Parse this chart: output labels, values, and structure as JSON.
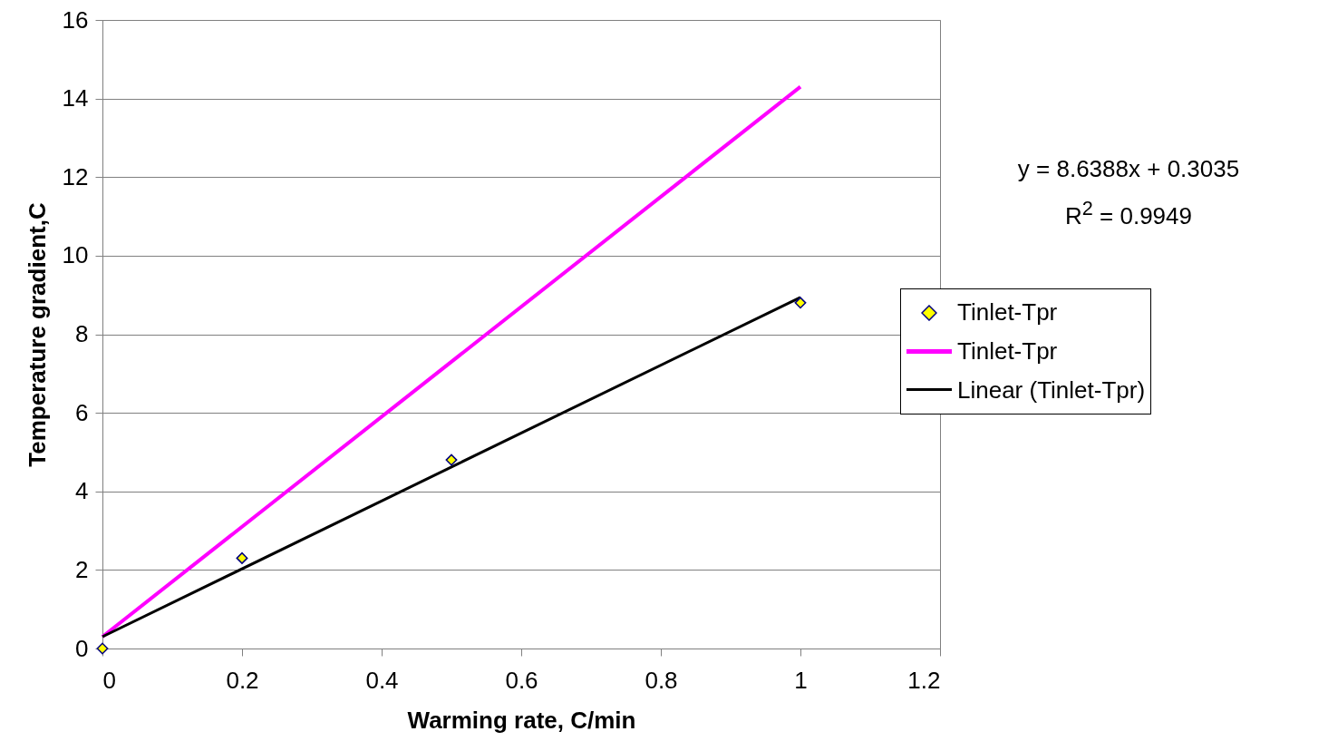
{
  "chart_data": {
    "type": "scatter",
    "xlabel": "Warming rate, C/min",
    "ylabel": "Temperature gradient,C",
    "xlim": [
      0,
      1.2
    ],
    "xticks": [
      0,
      0.2,
      0.4,
      0.6,
      0.8,
      1,
      1.2
    ],
    "ylim": [
      0,
      16
    ],
    "yticks": [
      0,
      2,
      4,
      6,
      8,
      10,
      12,
      14,
      16
    ],
    "grid": "y",
    "legend": "right",
    "annotations": [
      "y = 8.6388x + 0.3035",
      "R$^{2}$ = 0.9949"
    ],
    "series": [
      {
        "name": "Tinlet-Tpr",
        "marker": "diamond",
        "color": "#ffff00",
        "x": [
          0,
          0.2,
          0.5,
          1
        ],
        "values": [
          0,
          2.3,
          4.8,
          8.8
        ]
      },
      {
        "name": "Tinlet-Tpr",
        "type": "line",
        "color": "#ff00ff",
        "x": [
          0,
          1
        ],
        "values": [
          0.3,
          14.3
        ]
      },
      {
        "name": "Linear (Tinlet-Tpr)",
        "type": "line",
        "color": "#000000",
        "x": [
          0,
          1
        ],
        "values": [
          0.3,
          8.94
        ]
      }
    ]
  }
}
